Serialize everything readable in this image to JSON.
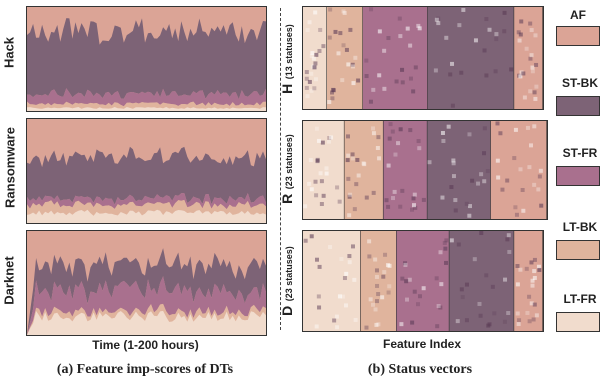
{
  "left": {
    "x_title": "Time (1-200 hours)",
    "caption": "(a) Feature imp-scores of DTs",
    "panels": [
      {
        "label": "Hack",
        "layers": {
          "lt_fr": 3,
          "lt_bk": 4,
          "st_fr": 10,
          "st_bk": 60
        }
      },
      {
        "label": "Ransomware",
        "layers": {
          "lt_fr": 10,
          "lt_bk": 8,
          "st_fr": 6,
          "st_bk": 40
        }
      },
      {
        "label": "Darknet",
        "layers": {
          "lt_fr": 18,
          "lt_bk": 5,
          "st_fr": 20,
          "st_bk": 25
        }
      }
    ]
  },
  "right": {
    "x_title": "Feature Index",
    "caption": "(b) Status vectors",
    "panels": [
      {
        "letter": "H",
        "statuses": "(13 statuses)"
      },
      {
        "letter": "R",
        "statuses": "(23 statuses)"
      },
      {
        "letter": "D",
        "statuses": "(23 statuses)"
      }
    ]
  },
  "legend": [
    {
      "label": "AF",
      "color": "#dba496"
    },
    {
      "label": "ST-BK",
      "color": "#7d6376"
    },
    {
      "label": "ST-FR",
      "color": "#a9708e"
    },
    {
      "label": "LT-BK",
      "color": "#e0b49d"
    },
    {
      "label": "LT-FR",
      "color": "#f1dccd"
    }
  ],
  "chart_data": [
    {
      "type": "area",
      "title": "",
      "xlabel": "Time (1-200 hours)",
      "ylabel": "",
      "panels": [
        "Hack",
        "Ransomware",
        "Darknet"
      ],
      "series": [
        {
          "name": "AF"
        },
        {
          "name": "ST-BK"
        },
        {
          "name": "ST-FR"
        },
        {
          "name": "LT-BK"
        },
        {
          "name": "LT-FR"
        }
      ]
    },
    {
      "type": "heatmap",
      "title": "",
      "xlabel": "Feature Index",
      "rows": [
        "H (13 statuses)",
        "R (23 statuses)",
        "D (23 statuses)"
      ],
      "blocks_legend": [
        "LT-FR",
        "LT-BK",
        "ST-FR",
        "ST-BK",
        "AF"
      ]
    }
  ]
}
